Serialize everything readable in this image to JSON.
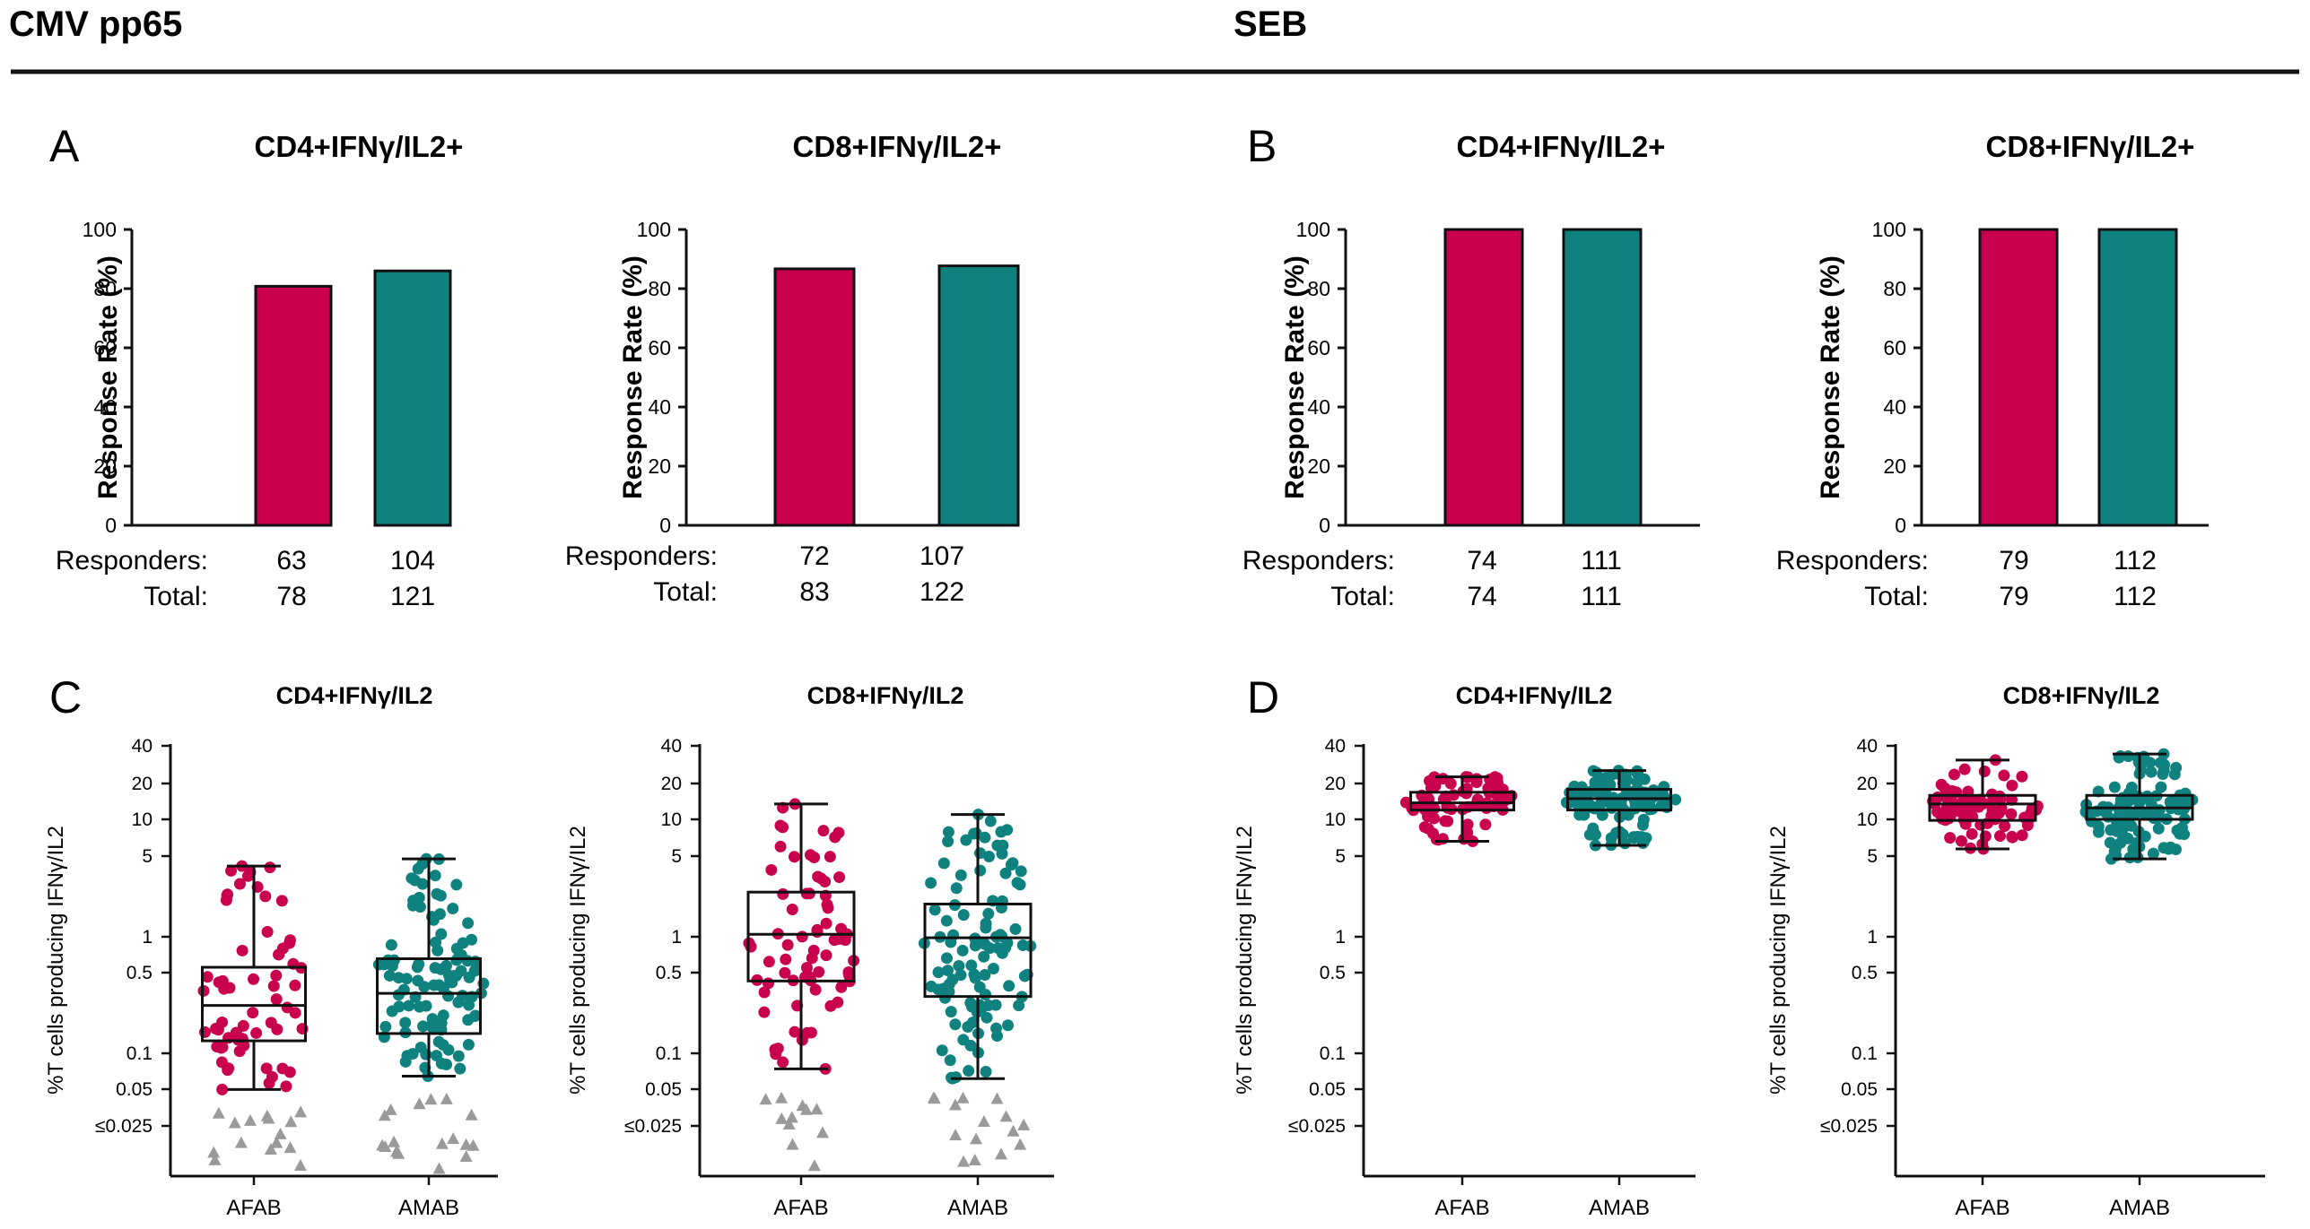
{
  "sections": [
    {
      "title": "CMV pp65",
      "panels": [
        "A",
        "C"
      ]
    },
    {
      "title": "SEB",
      "panels": [
        "B",
        "D"
      ]
    }
  ],
  "colors": {
    "afab": "#C8004E",
    "amab": "#0F8280",
    "nonresponder": "#9A9A9A",
    "axis": "#111111"
  },
  "row_labels": {
    "responders": "Responders:",
    "total": "Total:"
  },
  "groups": [
    "AFAB",
    "AMAB"
  ],
  "chart_data": [
    {
      "type": "bar",
      "panel": "A",
      "section": "CMV pp65",
      "title": "CD4+IFNγ/IL2+",
      "ylabel": "Response Rate (%)",
      "ylim": [
        0,
        100
      ],
      "yticks": [
        0,
        20,
        40,
        60,
        80,
        100
      ],
      "categories": [
        "AFAB",
        "AMAB"
      ],
      "values": [
        80.8,
        86.0
      ],
      "responders": [
        63,
        104
      ],
      "total": [
        78,
        121
      ]
    },
    {
      "type": "bar",
      "panel": "",
      "section": "CMV pp65",
      "title": "CD8+IFNγ/IL2+",
      "ylabel": "Response Rate (%)",
      "ylim": [
        0,
        100
      ],
      "yticks": [
        0,
        20,
        40,
        60,
        80,
        100
      ],
      "categories": [
        "AFAB",
        "AMAB"
      ],
      "values": [
        86.7,
        87.7
      ],
      "responders": [
        72,
        107
      ],
      "total": [
        83,
        122
      ]
    },
    {
      "type": "bar",
      "panel": "B",
      "section": "SEB",
      "title": "CD4+IFNγ/IL2+",
      "ylabel": "Response Rate (%)",
      "ylim": [
        0,
        100
      ],
      "yticks": [
        0,
        20,
        40,
        60,
        80,
        100
      ],
      "categories": [
        "AFAB",
        "AMAB"
      ],
      "values": [
        100,
        100
      ],
      "responders": [
        74,
        111
      ],
      "total": [
        74,
        111
      ]
    },
    {
      "type": "bar",
      "panel": "",
      "section": "SEB",
      "title": "CD8+IFNγ/IL2+",
      "ylabel": "Response Rate (%)",
      "ylim": [
        0,
        100
      ],
      "yticks": [
        0,
        20,
        40,
        60,
        80,
        100
      ],
      "categories": [
        "AFAB",
        "AMAB"
      ],
      "values": [
        100,
        100
      ],
      "responders": [
        79,
        112
      ],
      "total": [
        79,
        112
      ]
    },
    {
      "type": "box",
      "panel": "C",
      "section": "CMV pp65",
      "title": "CD4+IFNγ/IL2",
      "ylabel": "%T cells producing IFNγ/IL2",
      "yscale": "log",
      "yticks": [
        "≤0.025",
        "0.05",
        "0.1",
        "0.5",
        "1",
        "5",
        "10",
        "20",
        "40"
      ],
      "categories": [
        "AFAB",
        "AMAB"
      ],
      "series": [
        {
          "name": "AFAB",
          "min": 0.05,
          "q1": 0.13,
          "median": 0.26,
          "q3": 0.55,
          "max": 4.0,
          "responders": 63,
          "nonresponders": 15
        },
        {
          "name": "AMAB",
          "min": 0.065,
          "q1": 0.15,
          "median": 0.33,
          "q3": 0.65,
          "max": 4.6,
          "responders": 104,
          "nonresponders": 17
        }
      ]
    },
    {
      "type": "box",
      "panel": "",
      "section": "CMV pp65",
      "title": "CD8+IFNγ/IL2",
      "ylabel": "%T cells producing IFNγ/IL2",
      "yscale": "log",
      "yticks": [
        "≤0.025",
        "0.05",
        "0.1",
        "0.5",
        "1",
        "5",
        "10",
        "20",
        "40"
      ],
      "categories": [
        "AFAB",
        "AMAB"
      ],
      "series": [
        {
          "name": "AFAB",
          "min": 0.075,
          "q1": 0.42,
          "median": 1.05,
          "q3": 2.4,
          "max": 13.5,
          "responders": 72,
          "nonresponders": 11
        },
        {
          "name": "AMAB",
          "min": 0.062,
          "q1": 0.31,
          "median": 0.98,
          "q3": 1.9,
          "max": 11.0,
          "responders": 107,
          "nonresponders": 15
        }
      ]
    },
    {
      "type": "box",
      "panel": "D",
      "section": "SEB",
      "title": "CD4+IFNγ/IL2",
      "ylabel": "%T cells producing IFNγ/IL2",
      "yscale": "log",
      "yticks": [
        "≤0.025",
        "0.05",
        "0.1",
        "0.5",
        "1",
        "5",
        "10",
        "20",
        "40"
      ],
      "categories": [
        "AFAB",
        "AMAB"
      ],
      "series": [
        {
          "name": "AFAB",
          "min": 6.5,
          "q1": 12.0,
          "median": 13.8,
          "q3": 17.0,
          "max": 23.0,
          "responders": 74,
          "nonresponders": 0
        },
        {
          "name": "AMAB",
          "min": 6.0,
          "q1": 12.0,
          "median": 15.0,
          "q3": 18.0,
          "max": 26.0,
          "responders": 111,
          "nonresponders": 0
        }
      ]
    },
    {
      "type": "box",
      "panel": "",
      "section": "SEB",
      "title": "CD8+IFNγ/IL2",
      "ylabel": "%T cells producing IFNγ/IL2",
      "yscale": "log",
      "yticks": [
        "≤0.025",
        "0.05",
        "0.1",
        "0.5",
        "1",
        "5",
        "10",
        "20",
        "40"
      ],
      "categories": [
        "AFAB",
        "AMAB"
      ],
      "series": [
        {
          "name": "AFAB",
          "min": 5.6,
          "q1": 9.8,
          "median": 13.5,
          "q3": 16.0,
          "max": 32.0,
          "responders": 79,
          "nonresponders": 0
        },
        {
          "name": "AMAB",
          "min": 4.6,
          "q1": 10.0,
          "median": 12.5,
          "q3": 16.0,
          "max": 36.0,
          "responders": 112,
          "nonresponders": 0
        }
      ]
    }
  ]
}
